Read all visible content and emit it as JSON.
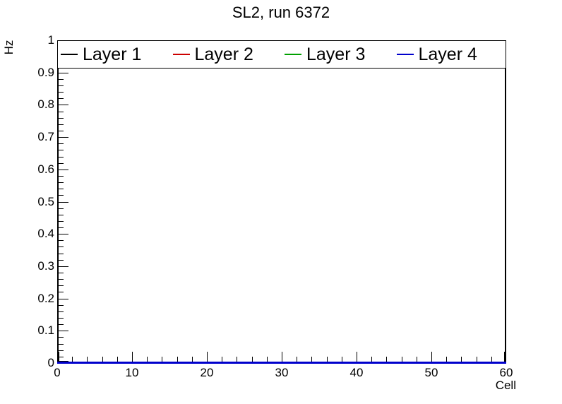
{
  "page": {
    "background": "#ffffff"
  },
  "chart_data": {
    "type": "line",
    "title": "SL2, run 6372",
    "xlabel": "Cell",
    "ylabel": "Hz",
    "xlim": [
      0,
      60
    ],
    "ylim": [
      0,
      1
    ],
    "grid": false,
    "legend_position": "top-inside-full-width",
    "axis_color": "#000000",
    "x_axis": {
      "major_ticks": [
        0,
        10,
        20,
        30,
        40,
        50,
        60
      ],
      "major_tick_labels": [
        "0",
        "10",
        "20",
        "30",
        "40",
        "50",
        "60"
      ],
      "minor_tick_step": 2
    },
    "y_axis": {
      "major_ticks": [
        0,
        0.1,
        0.2,
        0.3,
        0.4,
        0.5,
        0.6,
        0.7,
        0.8,
        0.9,
        1
      ],
      "major_tick_labels": [
        "0",
        "0.1",
        "0.2",
        "0.3",
        "0.4",
        "0.5",
        "0.6",
        "0.7",
        "0.8",
        "0.9",
        "1"
      ],
      "minor_tick_step": 0.02
    },
    "x": [
      0,
      60
    ],
    "series": [
      {
        "name": "Layer 1",
        "color": "#000000",
        "y": [
          0,
          0
        ]
      },
      {
        "name": "Layer 2",
        "color": "#cc0000",
        "y": [
          0,
          0
        ]
      },
      {
        "name": "Layer 3",
        "color": "#00a000",
        "y": [
          0,
          0
        ]
      },
      {
        "name": "Layer 4",
        "color": "#0000cc",
        "y": [
          0,
          0
        ]
      }
    ]
  }
}
